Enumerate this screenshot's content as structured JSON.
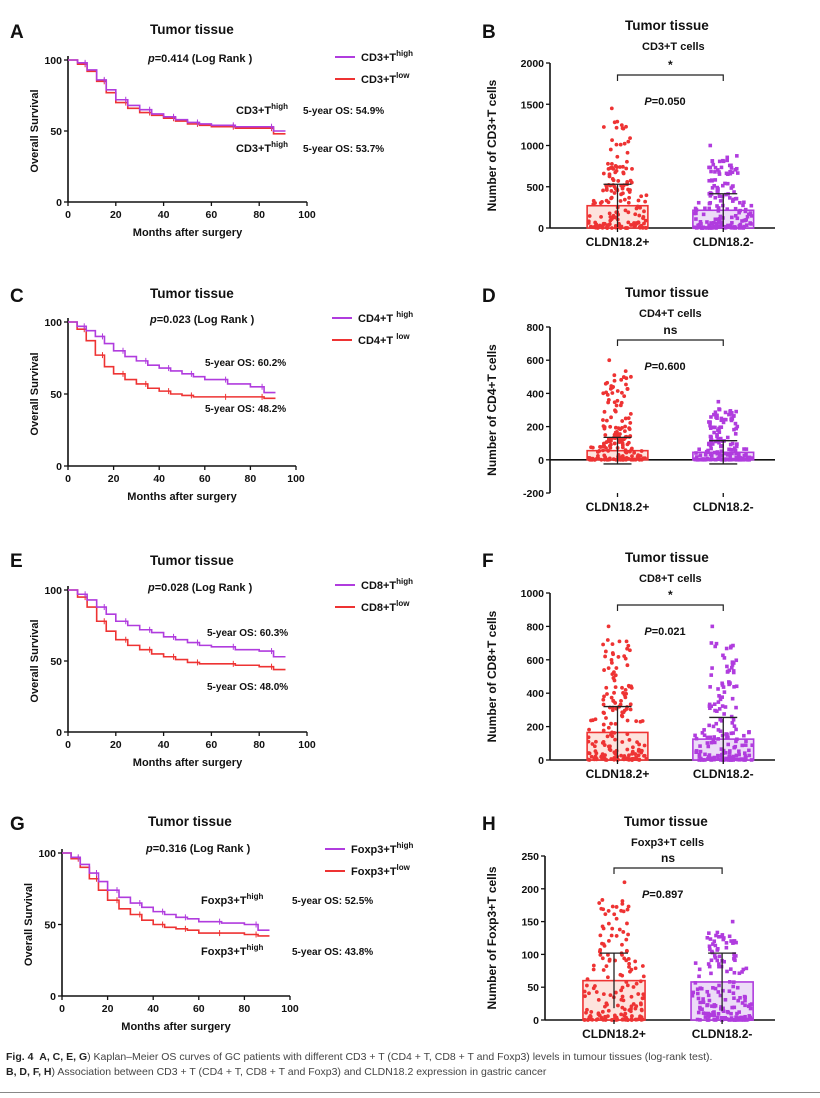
{
  "colors": {
    "high": "#b03cde",
    "low": "#ee3333",
    "axis": "#111111",
    "bar_pos_fill": "#fde3dd",
    "bar_neg_fill": "#ecdcf7"
  },
  "chart_data": [
    {
      "id": "A",
      "type": "line",
      "panel_label": "A",
      "title": "Tumor tissue",
      "p_label": "p=0.414 (Log Rank )",
      "xlabel": "Months after surgery",
      "ylabel": "Overall Survival",
      "xlim": [
        0,
        100
      ],
      "ylim": [
        0,
        100
      ],
      "xticks": [
        0,
        20,
        40,
        60,
        80,
        100
      ],
      "yticks": [
        0,
        50,
        100
      ],
      "legend": [
        {
          "series": "high",
          "name": "CD3+T",
          "sup": "high"
        },
        {
          "series": "low",
          "name": "CD3+T",
          "sup": "low"
        }
      ],
      "series": [
        {
          "name": "high",
          "x": [
            0,
            4,
            8,
            12,
            16,
            20,
            25,
            30,
            35,
            40,
            45,
            50,
            55,
            60,
            70,
            80,
            86,
            91
          ],
          "y": [
            100,
            98,
            93,
            86,
            79,
            72,
            68,
            65,
            62,
            60,
            58,
            56,
            55,
            54,
            53,
            53,
            50,
            50
          ]
        },
        {
          "name": "low",
          "x": [
            0,
            4,
            8,
            12,
            16,
            20,
            25,
            30,
            35,
            40,
            45,
            50,
            55,
            60,
            70,
            80,
            86,
            91
          ],
          "y": [
            100,
            97,
            92,
            85,
            77,
            70,
            66,
            63,
            61,
            59,
            57,
            55,
            54,
            53,
            52,
            52,
            48,
            48
          ]
        }
      ],
      "annotations": [
        {
          "name": "CD3+T",
          "sup": "high",
          "os": "5-year OS: 54.9%"
        },
        {
          "name": "CD3+T",
          "sup": "high",
          "os": "5-year OS: 53.7%"
        }
      ]
    },
    {
      "id": "B",
      "type": "bar",
      "panel_label": "B",
      "title": "Tumor tissue",
      "subtitle": "CD3+T cells",
      "ylabel": "Number of CD3+T cells",
      "categories": [
        "CLDN18.2+",
        "CLDN18.2-"
      ],
      "values": [
        270,
        215
      ],
      "sd": [
        260,
        200
      ],
      "ylim": [
        0,
        2000
      ],
      "yticks": [
        0,
        500,
        1000,
        1500,
        2000
      ],
      "significance": "*",
      "p_label": "P=0.050",
      "points_max": [
        1450,
        1000
      ]
    },
    {
      "id": "C",
      "type": "line",
      "panel_label": "C",
      "title": "Tumor tissue",
      "p_label": "p=0.023 (Log Rank )",
      "xlabel": "Months after surgery",
      "ylabel": "Overall Survival",
      "xlim": [
        0,
        100
      ],
      "ylim": [
        0,
        100
      ],
      "xticks": [
        0,
        20,
        40,
        60,
        80,
        100
      ],
      "yticks": [
        0,
        50,
        100
      ],
      "legend": [
        {
          "series": "high",
          "name": "CD4+T ",
          "sup": "high"
        },
        {
          "series": "low",
          "name": "CD4+T ",
          "sup": "low"
        }
      ],
      "series": [
        {
          "name": "high",
          "x": [
            0,
            4,
            8,
            12,
            16,
            20,
            25,
            30,
            35,
            40,
            45,
            50,
            55,
            60,
            70,
            80,
            86,
            91
          ],
          "y": [
            100,
            97,
            94,
            90,
            85,
            80,
            76,
            73,
            70,
            68,
            66,
            64,
            62,
            60,
            57,
            55,
            51,
            51
          ]
        },
        {
          "name": "low",
          "x": [
            0,
            4,
            8,
            12,
            16,
            20,
            25,
            30,
            35,
            40,
            45,
            50,
            55,
            60,
            70,
            80,
            86,
            91
          ],
          "y": [
            100,
            95,
            87,
            77,
            69,
            64,
            60,
            57,
            54,
            52,
            50,
            49,
            48,
            48,
            48,
            48,
            47,
            47
          ]
        }
      ],
      "annotations": [
        {
          "name": "",
          "sup": "",
          "os": "5-year OS: 60.2%"
        },
        {
          "name": "",
          "sup": "",
          "os": "5-year OS: 48.2%"
        }
      ]
    },
    {
      "id": "D",
      "type": "bar",
      "panel_label": "D",
      "title": "Tumor tissue",
      "subtitle": "CD4+T cells",
      "ylabel": "Number of CD4+T cells",
      "categories": [
        "CLDN18.2+",
        "CLDN18.2-"
      ],
      "values": [
        55,
        45
      ],
      "sd": [
        80,
        70
      ],
      "ylim": [
        -200,
        800
      ],
      "yticks": [
        -200,
        0,
        200,
        400,
        600,
        800
      ],
      "significance": "ns",
      "p_label": "P=0.600",
      "points_max": [
        600,
        350
      ]
    },
    {
      "id": "E",
      "type": "line",
      "panel_label": "E",
      "title": "Tumor tissue",
      "p_label": "p=0.028 (Log Rank )",
      "xlabel": "Months after surgery",
      "ylabel": "Overall Survival",
      "xlim": [
        0,
        100
      ],
      "ylim": [
        0,
        100
      ],
      "xticks": [
        0,
        20,
        40,
        60,
        80,
        100
      ],
      "yticks": [
        0,
        50,
        100
      ],
      "legend": [
        {
          "series": "high",
          "name": "CD8+T",
          "sup": "high"
        },
        {
          "series": "low",
          "name": "CD8+T",
          "sup": "low"
        }
      ],
      "series": [
        {
          "name": "high",
          "x": [
            0,
            4,
            8,
            12,
            16,
            20,
            25,
            30,
            35,
            40,
            45,
            50,
            55,
            60,
            70,
            80,
            86,
            91
          ],
          "y": [
            100,
            97,
            93,
            88,
            83,
            78,
            75,
            72,
            70,
            67,
            65,
            63,
            61,
            60,
            58,
            57,
            53,
            53
          ]
        },
        {
          "name": "low",
          "x": [
            0,
            4,
            8,
            12,
            16,
            20,
            25,
            30,
            35,
            40,
            45,
            50,
            55,
            60,
            70,
            80,
            86,
            91
          ],
          "y": [
            100,
            95,
            88,
            78,
            71,
            65,
            61,
            58,
            55,
            53,
            51,
            49,
            48,
            48,
            47,
            46,
            44,
            44
          ]
        }
      ],
      "annotations": [
        {
          "name": "",
          "sup": "",
          "os": "5-year OS: 60.3%"
        },
        {
          "name": "",
          "sup": "",
          "os": "5-year OS: 48.0%"
        }
      ]
    },
    {
      "id": "F",
      "type": "bar",
      "panel_label": "F",
      "title": "Tumor tissue",
      "subtitle": "CD8+T cells",
      "ylabel": "Number of CD8+T cells",
      "categories": [
        "CLDN18.2+",
        "CLDN18.2-"
      ],
      "values": [
        165,
        125
      ],
      "sd": [
        155,
        130
      ],
      "ylim": [
        0,
        1000
      ],
      "yticks": [
        0,
        200,
        400,
        600,
        800,
        1000
      ],
      "significance": "*",
      "p_label": "P=0.021",
      "points_max": [
        800,
        800
      ]
    },
    {
      "id": "G",
      "type": "line",
      "panel_label": "G",
      "title": "Tumor tissue",
      "p_label": "p=0.316 (Log Rank )",
      "xlabel": "Months after surgery",
      "ylabel": "Overall Survival",
      "xlim": [
        0,
        100
      ],
      "ylim": [
        0,
        100
      ],
      "xticks": [
        0,
        20,
        40,
        60,
        80,
        100
      ],
      "yticks": [
        0,
        50,
        100
      ],
      "legend": [
        {
          "series": "high",
          "name": "Foxp3+T",
          "sup": "high"
        },
        {
          "series": "low",
          "name": "Foxp3+T",
          "sup": "low"
        }
      ],
      "series": [
        {
          "name": "high",
          "x": [
            0,
            4,
            8,
            12,
            16,
            20,
            25,
            30,
            35,
            40,
            45,
            50,
            55,
            60,
            70,
            80,
            86,
            91
          ],
          "y": [
            100,
            97,
            92,
            86,
            80,
            74,
            69,
            65,
            62,
            59,
            57,
            55,
            54,
            52,
            51,
            50,
            46,
            46
          ]
        },
        {
          "name": "low",
          "x": [
            0,
            4,
            8,
            12,
            16,
            20,
            25,
            30,
            35,
            40,
            45,
            50,
            55,
            60,
            70,
            80,
            86,
            91
          ],
          "y": [
            100,
            96,
            90,
            82,
            74,
            67,
            61,
            57,
            53,
            50,
            48,
            47,
            46,
            44,
            44,
            43,
            42,
            42
          ]
        }
      ],
      "annotations": [
        {
          "name": "Foxp3+T",
          "sup": "high",
          "os": "5-year OS: 52.5%"
        },
        {
          "name": "Foxp3+T",
          "sup": "high",
          "os": "5-year OS: 43.8%"
        }
      ]
    },
    {
      "id": "H",
      "type": "bar",
      "panel_label": "H",
      "title": "Tumor tissue",
      "subtitle": "Foxp3+T cells",
      "ylabel": "Number of Foxp3+T cells",
      "categories": [
        "CLDN18.2+",
        "CLDN18.2-"
      ],
      "values": [
        60,
        58
      ],
      "sd": [
        42,
        44
      ],
      "ylim": [
        0,
        250
      ],
      "yticks": [
        0,
        50,
        100,
        150,
        200,
        250
      ],
      "significance": "ns",
      "p_label": "P=0.897",
      "points_max": [
        210,
        150
      ]
    }
  ],
  "caption": {
    "label": "Fig. 4",
    "refs1": "A, C, E, G",
    "text1": ") Kaplan–Meier OS curves of GC patients with different CD3 + T (CD4 + T, CD8 + T and Foxp3) levels in tumour tissues (log-rank test).",
    "refs2": "B, D, F, H",
    "text2": ") Association between CD3 + T (CD4 + T, CD8 + T and Foxp3) and CLDN18.2 expression in gastric cancer"
  }
}
